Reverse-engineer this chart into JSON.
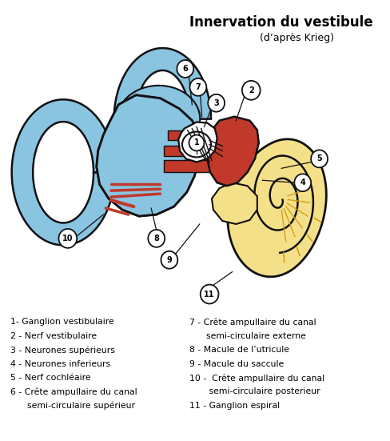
{
  "title": "Innervation du vestibule",
  "subtitle": "(d’après Krieg)",
  "legend_left": [
    "1- Ganglion vestibulaire",
    "2 - Nerf vestibulaire",
    "3 - Neurones supérieurs",
    "4 - Neurones inferieurs",
    "5 - Nerf cochléaire",
    "6 - Crête ampullaire du canal",
    "      semi-circulaire supérieur"
  ],
  "legend_right": [
    "7 - Crête ampullaire du canal",
    "      semi-circulaire externe",
    "8 - Macule de l’utricule",
    "9 - Macule du saccule",
    "10 -  Crête ampullaire du canal",
    "       semi-circulaire posterieur",
    "11 - Ganglion espiral"
  ],
  "bg_color": "#ffffff",
  "blue_light": "#89c4e1",
  "blue_mid": "#6baed6",
  "blue_dark": "#2171b5",
  "yellow_light": "#f5e08a",
  "yellow_mid": "#d4a017",
  "red_color": "#c0392b",
  "outline_color": "#111111",
  "white_color": "#ffffff"
}
